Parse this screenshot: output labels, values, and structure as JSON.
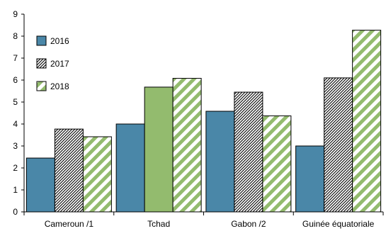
{
  "chart_data": {
    "type": "bar",
    "title": "",
    "xlabel": "",
    "ylabel": "",
    "ylim": [
      0,
      9
    ],
    "yticks": [
      "0",
      "1",
      "2",
      "3",
      "4",
      "5",
      "6",
      "7",
      "8",
      "9"
    ],
    "grid": false,
    "legend_position": "top-left",
    "categories": [
      "Cameroun /1",
      "Tchad",
      "Gabon /2",
      "Guinée équatoriale"
    ],
    "series": [
      {
        "name": "2016",
        "style": "solid-blue",
        "values": [
          2.45,
          4.0,
          4.58,
          3.0
        ]
      },
      {
        "name": "2017",
        "style": "black-diagonal-hatch",
        "values": [
          3.77,
          5.68,
          5.45,
          6.1
        ]
      },
      {
        "name": "2018",
        "style": "green-diagonal-stripe",
        "values": [
          3.42,
          6.08,
          4.37,
          8.27
        ]
      }
    ],
    "special_fills": [
      {
        "category": "Tchad",
        "series": "2017",
        "style": "solid-green"
      }
    ],
    "colors": {
      "blue": "#4a87a8",
      "green": "#93bb6e",
      "black": "#000000"
    }
  }
}
